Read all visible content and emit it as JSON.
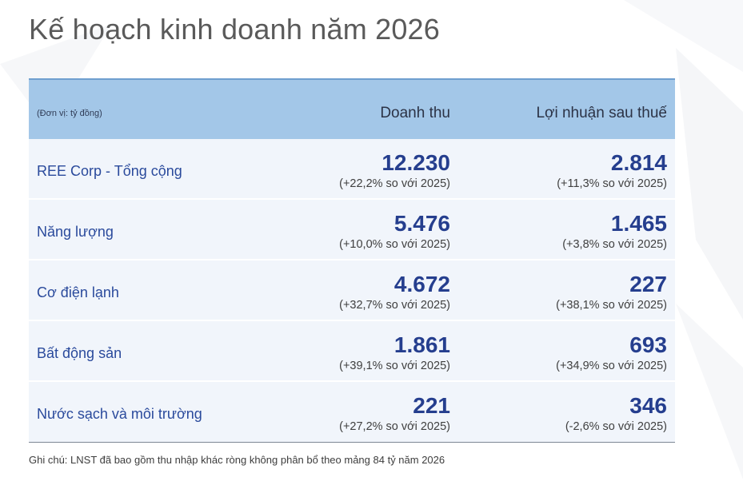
{
  "title": "Kế hoạch kinh doanh năm 2026",
  "table": {
    "unit_label": "(Đơn vị: tỷ đồng)",
    "columns": [
      "Doanh thu",
      "Lợi nhuận sau thuế"
    ],
    "rows": [
      {
        "label": "REE Corp - Tổng cộng",
        "revenue": "12.230",
        "revenue_change": "(+22,2% so với 2025)",
        "profit": "2.814",
        "profit_change": "(+11,3% so với 2025)"
      },
      {
        "label": "Năng lượng",
        "revenue": "5.476",
        "revenue_change": "(+10,0% so với 2025)",
        "profit": "1.465",
        "profit_change": "(+3,8% so với 2025)"
      },
      {
        "label": "Cơ điện lạnh",
        "revenue": "4.672",
        "revenue_change": "(+32,7% so với 2025)",
        "profit": "227",
        "profit_change": "(+38,1% so với 2025)"
      },
      {
        "label": "Bất động sản",
        "revenue": "1.861",
        "revenue_change": "(+39,1% so với 2025)",
        "profit": "693",
        "profit_change": "(+34,9% so với 2025)"
      },
      {
        "label": "Nước sạch và môi trường",
        "revenue": "221",
        "revenue_change": "(+27,2% so với 2025)",
        "profit": "346",
        "profit_change": "(-2,6% so với 2025)"
      }
    ]
  },
  "note": "Ghi chú: LNST đã bao gồm thu nhập khác ròng không phân bổ theo mảng 84 tỷ năm 2026",
  "colors": {
    "header_bg": "#a3c7e8",
    "row_bg": "#f1f5fb",
    "label_text": "#2a4a9c",
    "number_text": "#253e8e",
    "title_text": "#5a5a5a"
  }
}
